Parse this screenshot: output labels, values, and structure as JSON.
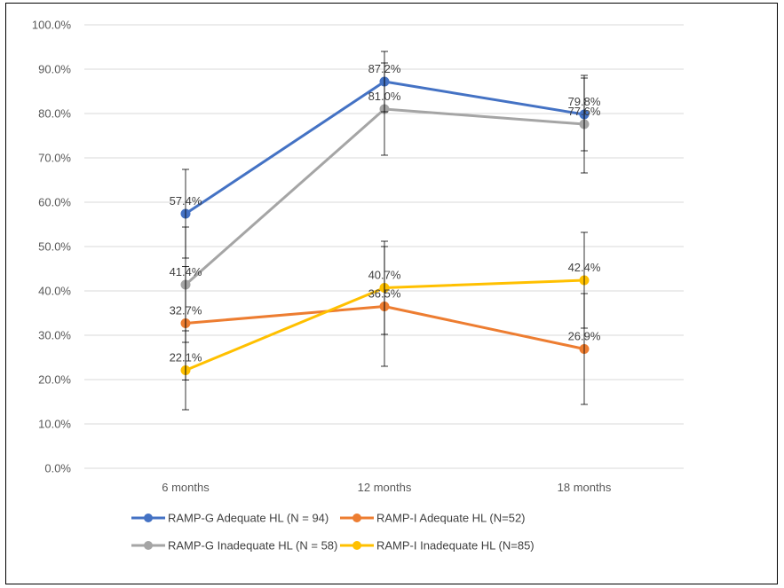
{
  "chart_data": {
    "type": "line",
    "categories": [
      "6 months",
      "12 months",
      "18 months"
    ],
    "ylim": [
      0,
      100
    ],
    "yticks": [
      "0.0%",
      "10.0%",
      "20.0%",
      "30.0%",
      "40.0%",
      "50.0%",
      "60.0%",
      "70.0%",
      "80.0%",
      "90.0%",
      "100.0%"
    ],
    "grid": true,
    "legend_position": "bottom",
    "series": [
      {
        "name": "RAMP-G Adequate HL (N = 94)",
        "color": "#4472C4",
        "values": [
          57.4,
          87.2,
          79.8
        ],
        "labels": [
          "57.4%",
          "87.2%",
          "79.8%"
        ],
        "error_bars": [
          [
            47.4,
            67.4
          ],
          [
            80.4,
            94.0
          ],
          [
            71.6,
            88.0
          ]
        ]
      },
      {
        "name": "RAMP-I Adequate HL (N=52)",
        "color": "#ED7D31",
        "values": [
          32.7,
          36.5,
          26.9
        ],
        "labels": [
          "32.7%",
          "36.5%",
          "26.9%"
        ],
        "error_bars": [
          [
            19.9,
            45.5
          ],
          [
            23.0,
            50.0
          ],
          [
            14.4,
            39.4
          ]
        ]
      },
      {
        "name": "RAMP-G Inadequate HL (N = 58)",
        "color": "#A5A5A5",
        "values": [
          41.4,
          81.0,
          77.6
        ],
        "labels": [
          "41.4%",
          "81.0%",
          "77.6%"
        ],
        "error_bars": [
          [
            28.4,
            54.4
          ],
          [
            70.6,
            91.4
          ],
          [
            66.6,
            88.6
          ]
        ]
      },
      {
        "name": "RAMP-I Inadequate HL (N=85)",
        "color": "#FFC000",
        "values": [
          22.1,
          40.7,
          42.4
        ],
        "labels": [
          "22.1%",
          "40.7%",
          "42.4%"
        ],
        "error_bars": [
          [
            13.2,
            31.0
          ],
          [
            30.2,
            51.2
          ],
          [
            31.6,
            53.2
          ]
        ]
      }
    ]
  }
}
